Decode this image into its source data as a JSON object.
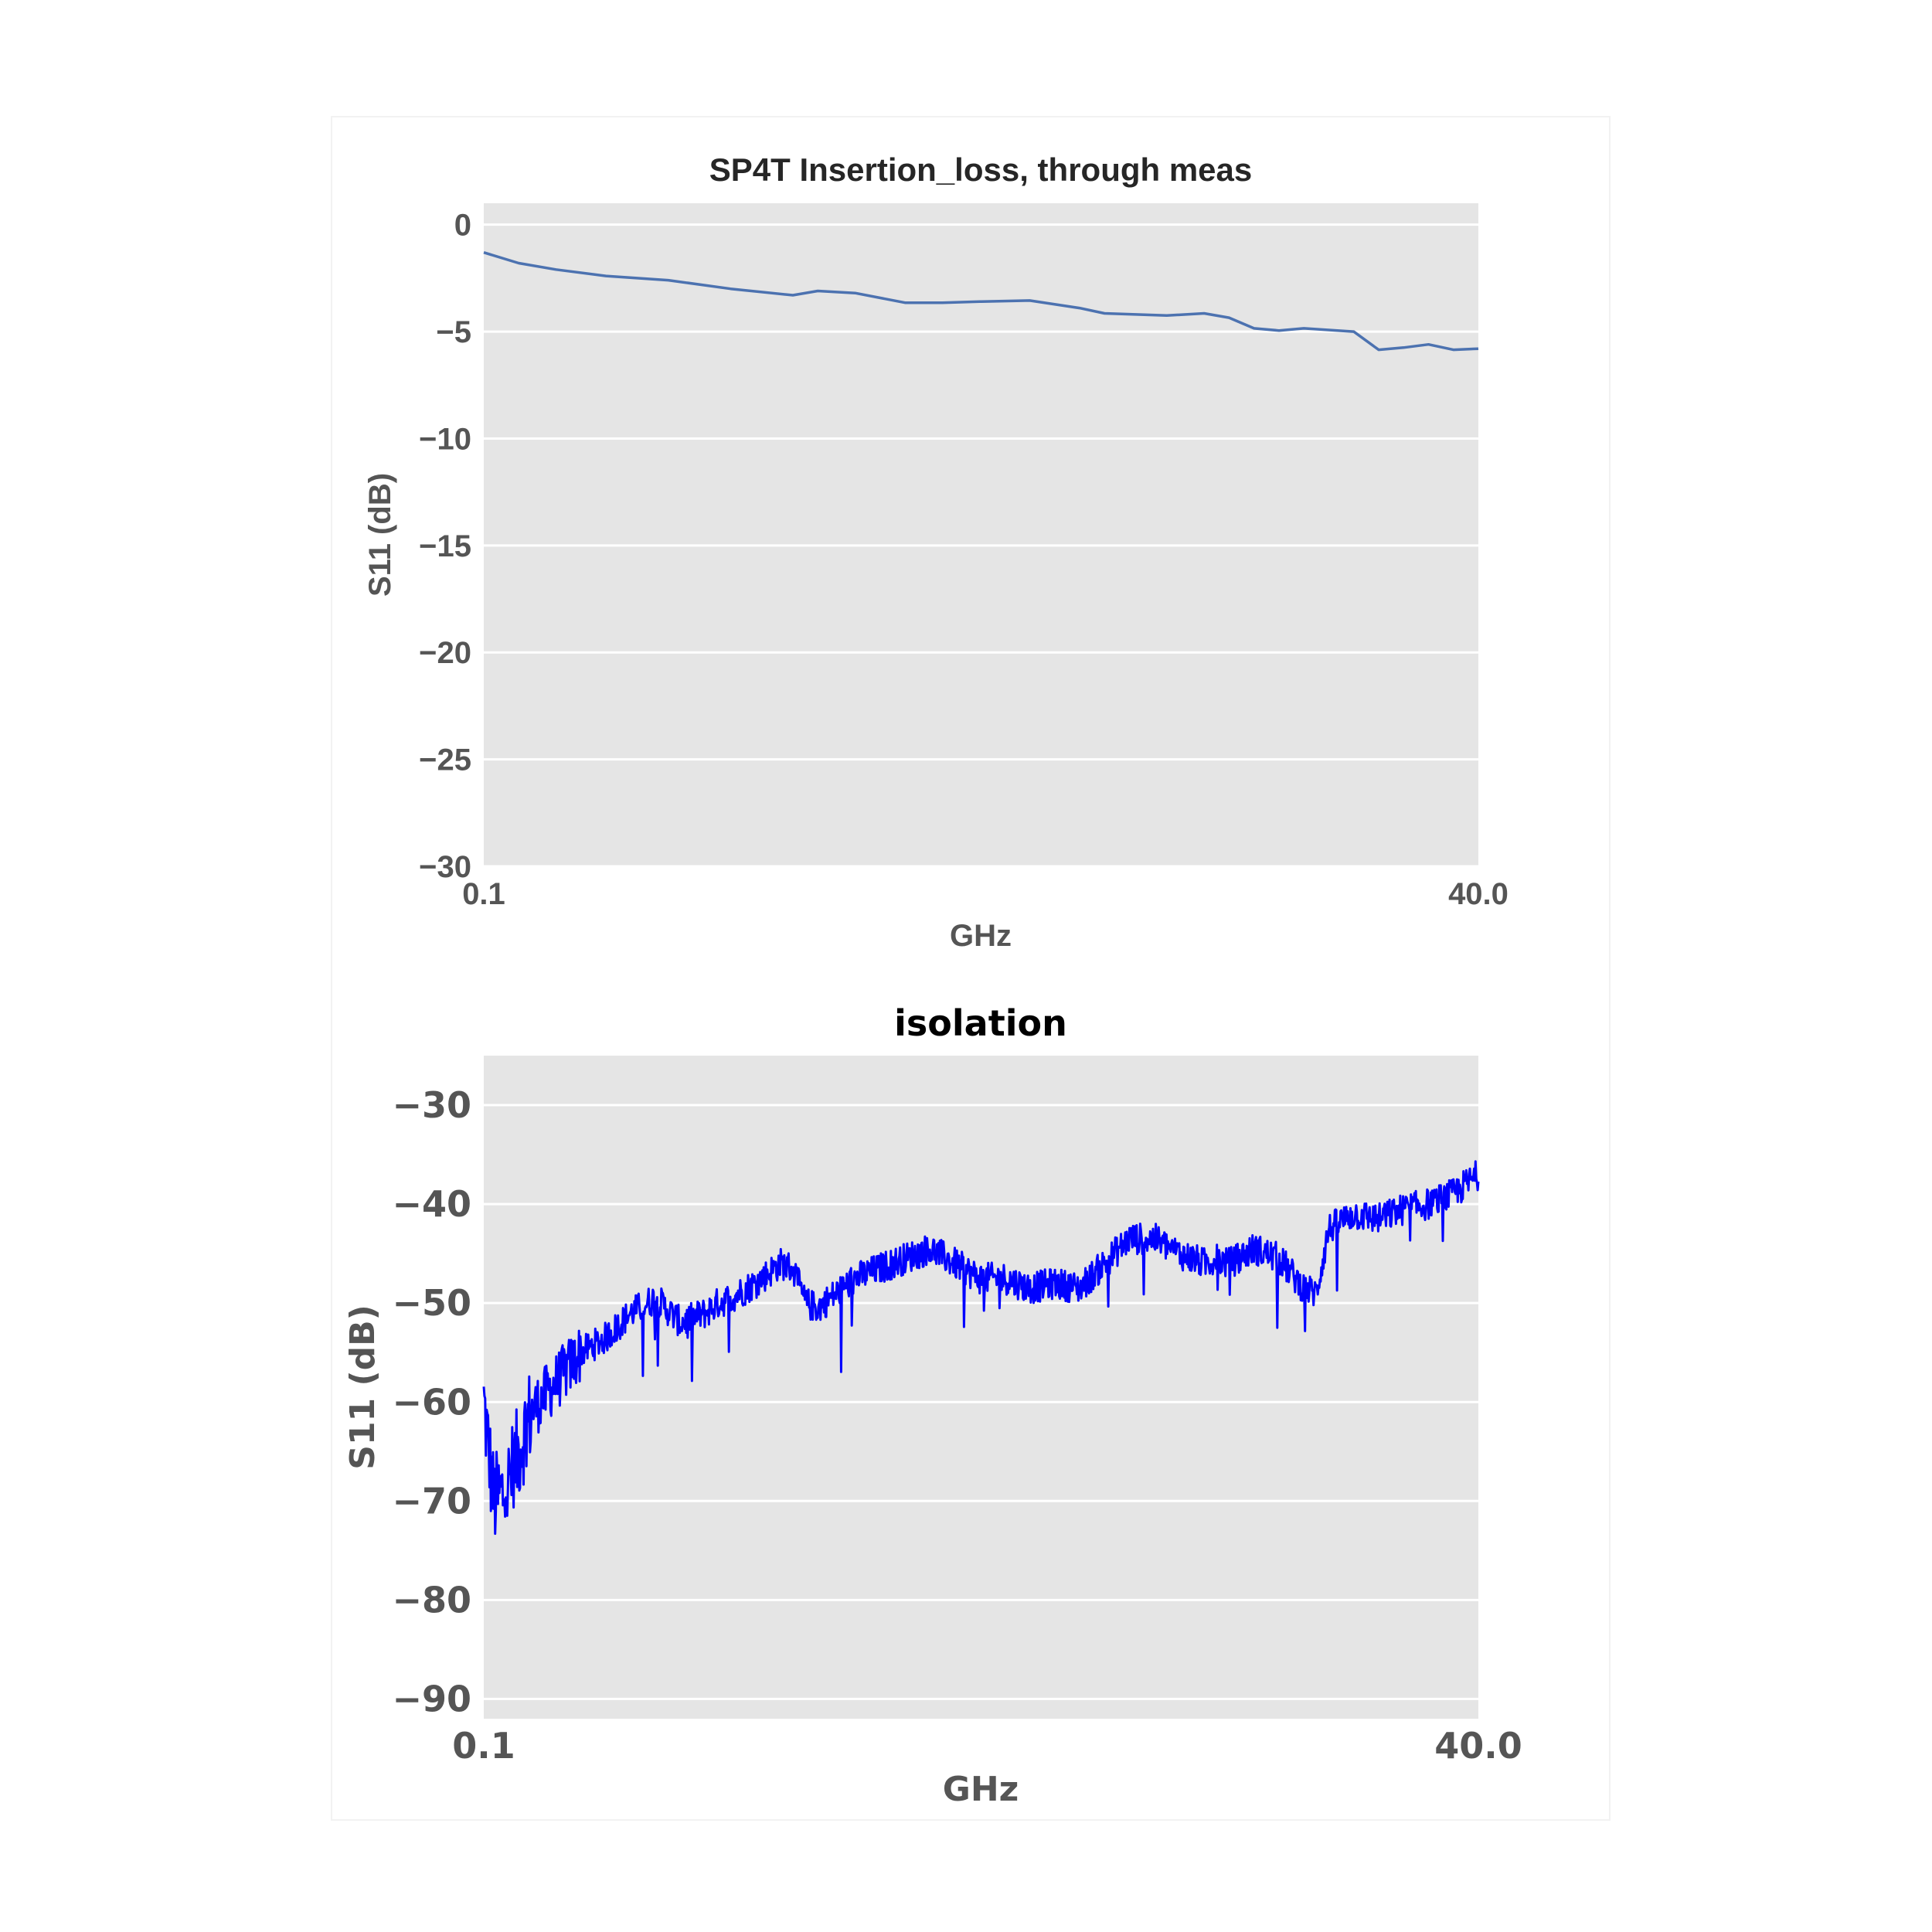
{
  "chart_data": [
    {
      "type": "line",
      "title": "SP4T Insertion_loss, through meas",
      "xlabel": "GHz",
      "ylabel": "S11 (dB)",
      "xlim": [
        0.1,
        40.0
      ],
      "ylim": [
        -30,
        1
      ],
      "xticks": [
        "0.1",
        "40.0"
      ],
      "yticks": [
        0,
        -5,
        -10,
        -15,
        -20,
        -25,
        -30
      ],
      "ytick_labels": [
        "0",
        "−5",
        "−10",
        "−15",
        "−20",
        "−25",
        "−30"
      ],
      "grid": true,
      "legend": "none",
      "color": "#4c72b0",
      "series": [
        {
          "x": [
            0.1,
            1.5,
            3.0,
            5.0,
            7.5,
            10.0,
            12.5,
            13.5,
            15.0,
            17.0,
            18.5,
            20.0,
            22.0,
            24.0,
            25.0,
            27.5,
            29.0,
            30.0,
            31.0,
            32.0,
            33.0,
            35.0,
            36.0,
            37.0,
            38.0,
            39.0,
            40.0
          ],
          "y": [
            -1.3,
            -1.8,
            -2.1,
            -2.4,
            -2.6,
            -3.0,
            -3.3,
            -3.1,
            -3.2,
            -3.65,
            -3.65,
            -3.6,
            -3.55,
            -3.9,
            -4.15,
            -4.25,
            -4.15,
            -4.35,
            -4.85,
            -4.95,
            -4.85,
            -5.0,
            -5.85,
            -5.75,
            -5.6,
            -5.85,
            -5.8
          ]
        }
      ]
    },
    {
      "type": "line",
      "title": "isolation",
      "xlabel": "GHz",
      "ylabel": "S11 (dB)",
      "xlim": [
        0.1,
        40.0
      ],
      "ylim": [
        -92,
        -25
      ],
      "xticks": [
        "0.1",
        "40.0"
      ],
      "yticks": [
        -30,
        -40,
        -50,
        -60,
        -70,
        -80,
        -90
      ],
      "ytick_labels": [
        "−30",
        "−40",
        "−50",
        "−60",
        "−70",
        "−80",
        "−90"
      ],
      "grid": true,
      "legend": "none",
      "color": "#0000ff",
      "series": [
        {
          "x": [
            0.1,
            0.5,
            1.0,
            1.5,
            2.0,
            3.0,
            4.0,
            5.0,
            6.0,
            7.0,
            8.0,
            9.0,
            9.5,
            10.0,
            11.0,
            12.0,
            12.5,
            13.0,
            13.5,
            14.0,
            15.0,
            16.0,
            17.0,
            18.0,
            19.0,
            20.0,
            21.0,
            22.0,
            23.0,
            24.0,
            25.0,
            26.0,
            27.0,
            28.0,
            29.0,
            29.5,
            30.0,
            31.0,
            32.0,
            33.0,
            33.5,
            34.0,
            35.0,
            36.0,
            37.0,
            38.0,
            39.0,
            40.0
          ],
          "y": [
            -60,
            -70,
            -69,
            -65,
            -61,
            -58,
            -55,
            -53.5,
            -51,
            -49.5,
            -52,
            -51,
            -50,
            -49.5,
            -48,
            -46,
            -46.5,
            -50,
            -50.5,
            -49.5,
            -47.5,
            -46.5,
            -45.5,
            -44.5,
            -46,
            -47.5,
            -47.5,
            -48.5,
            -48,
            -48.5,
            -46,
            -43.5,
            -43.5,
            -45,
            -46,
            -45.5,
            -46,
            -44.5,
            -45.5,
            -48.5,
            -49,
            -42.5,
            -41,
            -41.5,
            -40.5,
            -40,
            -39,
            -37
          ]
        }
      ]
    }
  ]
}
